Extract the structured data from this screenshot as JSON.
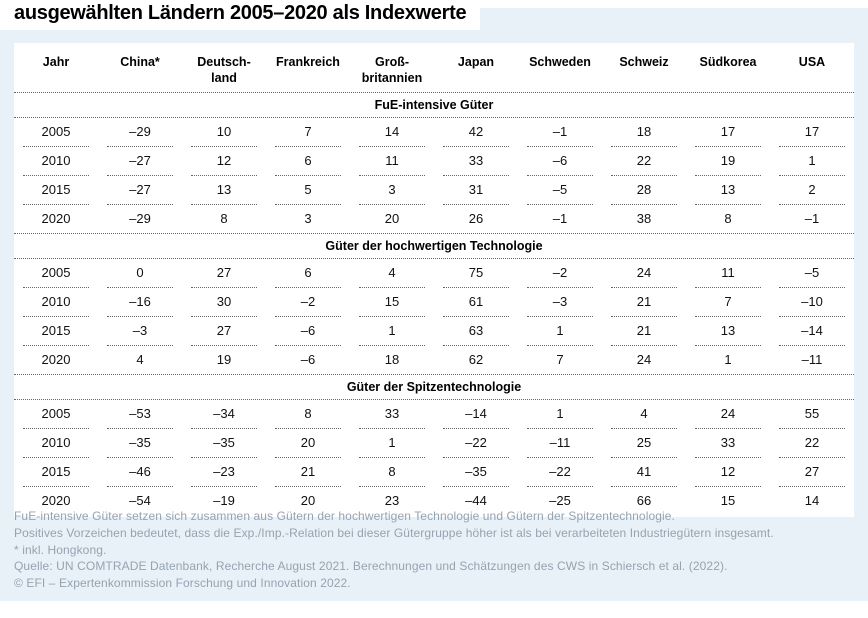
{
  "title": "ausgewählten Ländern 2005–2020 als Indexwerte",
  "colors": {
    "card_background": "#e8f1f8",
    "table_background": "#ffffff",
    "title_text": "#000000",
    "body_text": "#111111",
    "footnote_text": "#95a3b0",
    "dotted_line": "#666666"
  },
  "table": {
    "columns": [
      "Jahr",
      "China*",
      "Deutsch-\nland",
      "Frankreich",
      "Groß-\nbritannien",
      "Japan",
      "Schweden",
      "Schweiz",
      "Südkorea",
      "USA"
    ],
    "sections": [
      {
        "label": "FuE-intensive Güter",
        "rows": [
          [
            "2005",
            "–29",
            "10",
            "7",
            "14",
            "42",
            "–1",
            "18",
            "17",
            "17"
          ],
          [
            "2010",
            "–27",
            "12",
            "6",
            "11",
            "33",
            "–6",
            "22",
            "19",
            "1"
          ],
          [
            "2015",
            "–27",
            "13",
            "5",
            "3",
            "31",
            "–5",
            "28",
            "13",
            "2"
          ],
          [
            "2020",
            "–29",
            "8",
            "3",
            "20",
            "26",
            "–1",
            "38",
            "8",
            "–1"
          ]
        ]
      },
      {
        "label": "Güter der hochwertigen Technologie",
        "rows": [
          [
            "2005",
            "0",
            "27",
            "6",
            "4",
            "75",
            "–2",
            "24",
            "11",
            "–5"
          ],
          [
            "2010",
            "–16",
            "30",
            "–2",
            "15",
            "61",
            "–3",
            "21",
            "7",
            "–10"
          ],
          [
            "2015",
            "–3",
            "27",
            "–6",
            "1",
            "63",
            "1",
            "21",
            "13",
            "–14"
          ],
          [
            "2020",
            "4",
            "19",
            "–6",
            "18",
            "62",
            "7",
            "24",
            "1",
            "–11"
          ]
        ]
      },
      {
        "label": "Güter der Spitzentechnologie",
        "rows": [
          [
            "2005",
            "–53",
            "–34",
            "8",
            "33",
            "–14",
            "1",
            "4",
            "24",
            "55"
          ],
          [
            "2010",
            "–35",
            "–35",
            "20",
            "1",
            "–22",
            "–11",
            "25",
            "33",
            "22"
          ],
          [
            "2015",
            "–46",
            "–23",
            "21",
            "8",
            "–35",
            "–22",
            "41",
            "12",
            "27"
          ],
          [
            "2020",
            "–54",
            "–19",
            "20",
            "23",
            "–44",
            "–25",
            "66",
            "15",
            "14"
          ]
        ]
      }
    ]
  },
  "footnotes": [
    "FuE-intensive Güter setzen sich zusammen aus Gütern der hochwertigen Technologie und Gütern der Spitzentechnologie.",
    "Positives Vorzeichen bedeutet, dass die Exp./Imp.-Relation bei dieser Gütergruppe höher ist als bei verarbeiteten Industriegütern insgesamt.",
    "* inkl. Hongkong.",
    "Quelle: UN COMTRADE Datenbank, Recherche August 2021. Berechnungen und Schätzungen des CWS in Schiersch et al. (2022).",
    "© EFI – Expertenkommission Forschung und Innovation 2022."
  ]
}
